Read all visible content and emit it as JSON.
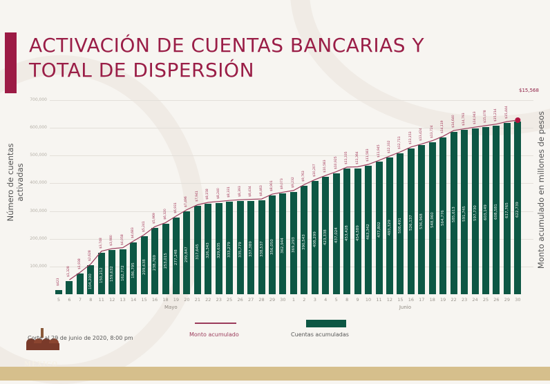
{
  "title": {
    "line1": "ACTIVACIÓN DE CUENTAS BANCARIAS Y",
    "line2": "TOTAL DE DISPERSIÓN"
  },
  "axes": {
    "left_label": "Número de cuentas activadas",
    "right_label": "Monto acumulado en millones de pesos",
    "y_ticks": [
      "100,000",
      "200,000",
      "300,000",
      "400,000",
      "500,000",
      "600,000",
      "700,000"
    ]
  },
  "months": {
    "may": "Mayo",
    "june": "Junio"
  },
  "final_amount": "$15,568",
  "legend": {
    "monto": "Monto acumulado",
    "cuentas": "Cuentas acumuladas"
  },
  "footnote": "Corte al 29 de junio de 2020, 8:00 pm",
  "logo_text": "MÉXICO",
  "colors": {
    "title": "#9a1e47",
    "bars": "#0d5744",
    "line": "#9a3a5a",
    "footer": "#d6bf8c"
  },
  "chart_data": {
    "type": "bar",
    "title": "ACTIVACIÓN DE CUENTAS BANCARIAS Y TOTAL DE DISPERSIÓN",
    "xlabel": "",
    "ylabel": "Número de cuentas activadas",
    "y2label": "Monto acumulado en millones de pesos",
    "ylim": [
      0,
      700000
    ],
    "grid": true,
    "legend_position": "bottom",
    "categories": [
      "5",
      "6",
      "7",
      "8",
      "11",
      "12",
      "13",
      "14",
      "15",
      "16",
      "18",
      "19",
      "20",
      "21",
      "22",
      "23",
      "25",
      "26",
      "27",
      "28",
      "29",
      "30",
      "1",
      "2",
      "3",
      "4",
      "5",
      "8",
      "9",
      "10",
      "11",
      "12",
      "15",
      "16",
      "17",
      "18",
      "19",
      "22",
      "23",
      "24",
      "25",
      "26",
      "29",
      "30"
    ],
    "month_groups": [
      {
        "label": "Mayo",
        "count": 22
      },
      {
        "label": "Junio",
        "count": 22
      }
    ],
    "series": [
      {
        "name": "Cuentas acumuladas",
        "type": "bar",
        "values": [
          16000,
          47000,
          74000,
          104200,
          150212,
          159632,
          162772,
          186795,
          209638,
          238769,
          253015,
          277248,
          299847,
          317645,
          326343,
          329635,
          333279,
          335779,
          337389,
          338537,
          356050,
          362944,
          369293,
          390543,
          408299,
          423338,
          437024,
          453428,
          454589,
          463342,
          477802,
          493329,
          508491,
          526137,
          536968,
          548960,
          564776,
          585613,
          591745,
          597730,
          603149,
          608581,
          617765,
          622739
        ],
        "labels": [
          "",
          "",
          "",
          "104,200",
          "150,212",
          "159,632",
          "162,772",
          "186,795",
          "209,638",
          "238,769",
          "253,015",
          "277,248",
          "299,847",
          "317,645",
          "326,343",
          "329,635",
          "333,279",
          "335,779",
          "337,389",
          "338,537",
          "356,050",
          "362,944",
          "369,293",
          "390,543",
          "408,299",
          "423,338",
          "437,024",
          "453,428",
          "454,589",
          "463,342",
          "477,802",
          "493,329",
          "508,491",
          "526,137",
          "536,968",
          "548,960",
          "564,776",
          "585,613",
          "591,745",
          "597,730",
          "603,149",
          "608,581",
          "617,765",
          "622,739"
        ]
      },
      {
        "name": "Monto acumulado",
        "type": "line",
        "unit": "millones de pesos",
        "labels": [
          "$423",
          "$1,328",
          "$1,938",
          "$2,628",
          "$3,748",
          "$3,980",
          "$4,058",
          "$4,683",
          "$5,241",
          "$5,969",
          "$6,320",
          "$6,931",
          "$7,496",
          "$7,941",
          "$8,158",
          "$8,240",
          "$8,331",
          "$8,393",
          "$8,434",
          "$8,463",
          "$8,901",
          "$9,073",
          "$9,232",
          "$9,763",
          "$10,207",
          "$10,583",
          "$10,925",
          "$11,335",
          "$11,364",
          "$11,583",
          "$11,945",
          "$12,332",
          "$12,711",
          "$13,153",
          "$13,424",
          "$13,724",
          "$14,119",
          "$14,640",
          "$14,793",
          "$14,943",
          "$15,078",
          "$15,214",
          "$15,444",
          "$15,568"
        ]
      }
    ]
  }
}
